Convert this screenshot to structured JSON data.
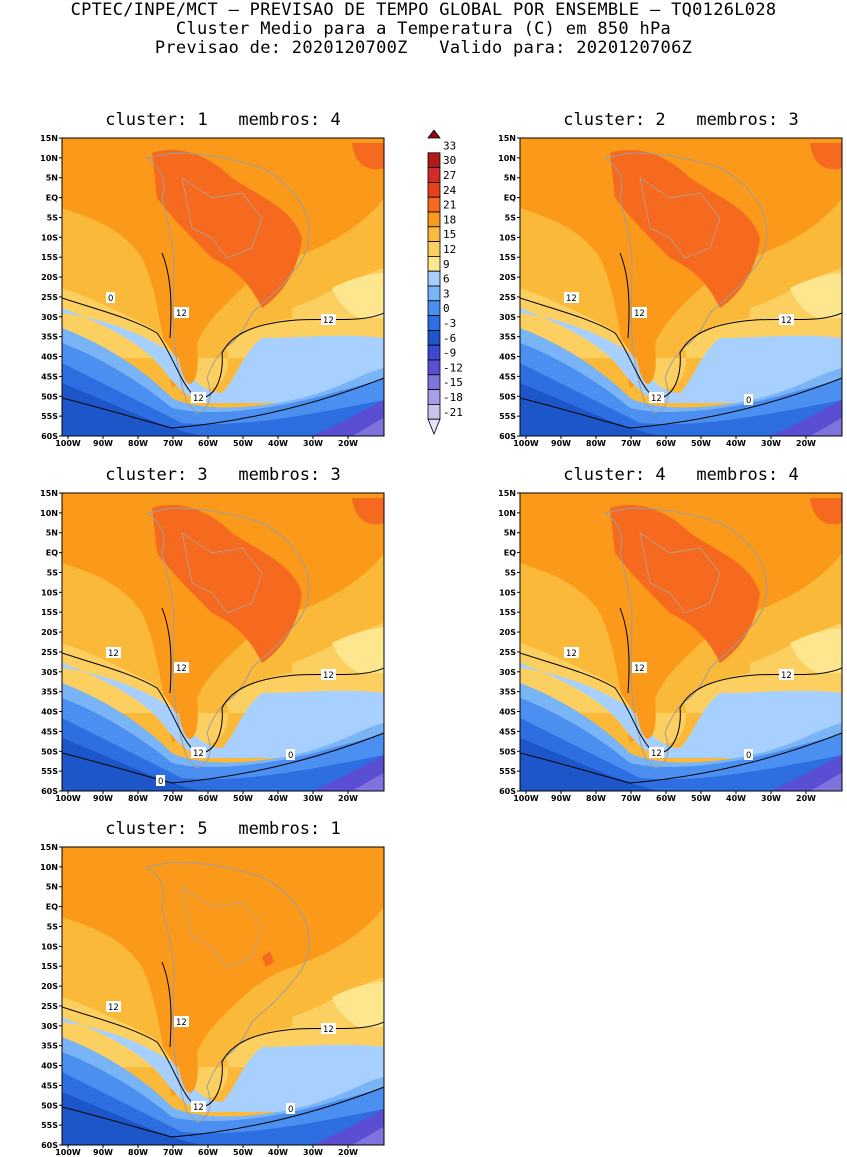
{
  "header": {
    "line1": "CPTEC/INPE/MCT – PREVISAO DE TEMPO GLOBAL POR ENSEMBLE – TQ0126L028",
    "line2": "Cluster Medio para a Temperatura (C) em 850 hPa",
    "line3": "Previsao de: 2020120700Z   Valido para: 2020120706Z"
  },
  "axes": {
    "lat_labels": [
      "15N",
      "10N",
      "5N",
      "EQ",
      "5S",
      "10S",
      "15S",
      "20S",
      "25S",
      "30S",
      "35S",
      "40S",
      "45S",
      "50S",
      "55S",
      "60S"
    ],
    "lon_labels": [
      "100W",
      "90W",
      "80W",
      "70W",
      "60W",
      "50W",
      "40W",
      "30W",
      "20W"
    ]
  },
  "colorbar": {
    "labels": [
      "33",
      "30",
      "27",
      "24",
      "21",
      "18",
      "15",
      "12",
      "9",
      "6",
      "3",
      "0",
      "-3",
      "-6",
      "-9",
      "-12",
      "-15",
      "-18",
      "-21"
    ],
    "colors": [
      "#8a0c0c",
      "#b01a1a",
      "#d12b2b",
      "#e8401d",
      "#f56a1e",
      "#fb9a1a",
      "#fbb93a",
      "#fcd060",
      "#fde68e",
      "#a8d0ff",
      "#79b4f6",
      "#4b8ff0",
      "#2d6ee0",
      "#1c56c8",
      "#3b4ad0",
      "#5a4fd2",
      "#7f73dd",
      "#a89ee8",
      "#cbc4f1",
      "#e6e2f8"
    ]
  },
  "panels": [
    {
      "title": "cluster: 1   membros: 4",
      "contour_labels": [
        "12",
        "12",
        "12",
        "0"
      ]
    },
    {
      "title": "cluster: 2   membros: 3",
      "contour_labels": [
        "12",
        "12",
        "12",
        "12",
        "0"
      ]
    },
    {
      "title": "cluster: 3   membros: 3",
      "contour_labels": [
        "12",
        "12",
        "12",
        "12",
        "0",
        "0"
      ]
    },
    {
      "title": "cluster: 4   membros: 4",
      "contour_labels": [
        "12",
        "12",
        "12",
        "12",
        "0"
      ]
    },
    {
      "title": "cluster: 5   membros: 1",
      "contour_labels": [
        "12",
        "12",
        "12",
        "12",
        "0"
      ]
    }
  ]
}
